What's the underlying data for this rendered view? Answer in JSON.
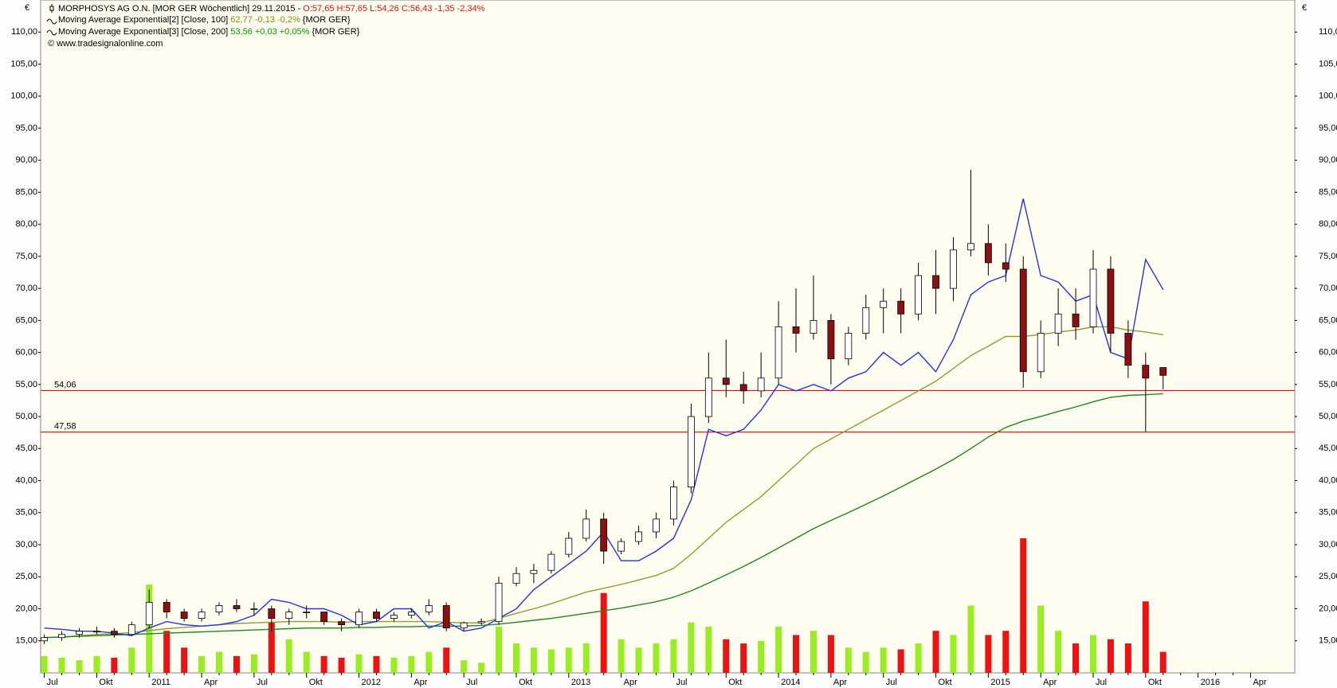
{
  "chart_data": {
    "type": "candlestick",
    "currency": "€",
    "title": "MORPHOSYS AG O.N. [MOR GER  Wöchentlich] 29.11.2015 -",
    "quote": "O:57,65 H:57,65 L:54,26 C:56,43 -1,35 -2,34%",
    "source": "© www.tradesignalonline.com",
    "categories": [
      "Jul",
      null,
      null,
      "Okt",
      null,
      null,
      "2011",
      null,
      null,
      "Apr",
      null,
      null,
      "Jul",
      null,
      null,
      "Okt",
      null,
      null,
      "2012",
      null,
      null,
      "Apr",
      null,
      null,
      "Jul",
      null,
      null,
      "Okt",
      null,
      null,
      "2013",
      null,
      null,
      "Apr",
      null,
      null,
      "Jul",
      null,
      null,
      "Okt",
      null,
      null,
      "2014",
      null,
      null,
      "Apr",
      null,
      null,
      "Jul",
      null,
      null,
      "Okt",
      null,
      null,
      "2015",
      null,
      null,
      "Apr",
      null,
      null,
      "Jul",
      null,
      null,
      "Okt",
      null,
      null,
      "2016",
      null,
      null,
      "Apr"
    ],
    "open": [
      15,
      15.5,
      16,
      16.5,
      16.5,
      16,
      17.5,
      21,
      19.5,
      18.5,
      19.5,
      20.5,
      20,
      20,
      18.5,
      19.5,
      19.5,
      18,
      17.5,
      19.5,
      18.5,
      19,
      19.5,
      20.5,
      17,
      17.8,
      18,
      24,
      25.5,
      26,
      28.5,
      31,
      34,
      29,
      30.5,
      32,
      34,
      39,
      50,
      56,
      55,
      54,
      56,
      64,
      63,
      65,
      59,
      63,
      67,
      68,
      66,
      72,
      70,
      76,
      77,
      74,
      73,
      57,
      63,
      66,
      64,
      73,
      63,
      58,
      57.65,
      null,
      null,
      null,
      null,
      null
    ],
    "high": [
      16,
      16.5,
      17,
      17.2,
      17,
      18,
      23,
      21.5,
      20,
      20,
      21,
      21.5,
      21,
      20.5,
      20,
      20.5,
      19.5,
      18.5,
      20,
      20,
      19.5,
      20,
      21.5,
      21,
      18,
      18.5,
      25,
      26.5,
      27,
      29,
      32,
      35.5,
      35,
      31,
      33,
      35,
      40,
      52,
      60,
      62,
      57,
      60,
      68,
      70,
      72,
      66,
      64,
      69,
      70,
      70,
      74,
      76,
      78,
      88.5,
      80,
      77,
      75,
      65,
      70,
      70,
      76,
      75,
      65,
      60,
      57.65,
      null,
      null,
      null,
      null,
      null
    ],
    "low": [
      14.5,
      15,
      15.5,
      16,
      15.5,
      15.8,
      17,
      18.5,
      18,
      18,
      19,
      19.5,
      19,
      16.5,
      17.5,
      18.5,
      17.5,
      16.5,
      17,
      18,
      18,
      18.5,
      19,
      16.5,
      16.5,
      17.5,
      17.5,
      23.5,
      24,
      25.5,
      28,
      30.5,
      27,
      28.5,
      30,
      31,
      33,
      38,
      49,
      53,
      52,
      53,
      55,
      60,
      62,
      55,
      58,
      62,
      63,
      63,
      65,
      66,
      68,
      75,
      72,
      71,
      54.5,
      56,
      61,
      62,
      63,
      60,
      56,
      47.58,
      54.26,
      null,
      null,
      null,
      null,
      null
    ],
    "close": [
      15.5,
      16,
      16.5,
      16.5,
      16,
      17.5,
      21,
      19.5,
      18.5,
      19.5,
      20.5,
      20,
      20,
      18.5,
      19.5,
      19.5,
      18,
      17.5,
      19.5,
      18.5,
      19,
      19.5,
      20.5,
      17,
      17.8,
      18,
      24,
      25.5,
      26,
      28.5,
      31,
      34,
      29,
      30.5,
      32,
      34,
      39,
      50,
      56,
      55,
      54,
      56,
      64,
      63,
      65,
      59,
      63,
      67,
      68,
      66,
      72,
      70,
      76,
      77,
      74,
      73,
      57,
      63,
      66,
      64,
      73,
      63,
      58,
      56,
      56.43,
      null,
      null,
      null,
      null,
      null
    ],
    "volume": [
      20,
      18,
      15,
      20,
      18,
      30,
      105,
      50,
      30,
      20,
      25,
      20,
      22,
      60,
      40,
      25,
      20,
      18,
      22,
      20,
      18,
      20,
      25,
      30,
      15,
      12,
      55,
      35,
      30,
      28,
      30,
      35,
      95,
      40,
      30,
      35,
      40,
      60,
      55,
      40,
      35,
      38,
      55,
      45,
      50,
      45,
      30,
      25,
      30,
      28,
      35,
      50,
      45,
      80,
      45,
      50,
      160,
      80,
      50,
      35,
      45,
      40,
      35,
      85,
      25,
      null,
      null,
      null,
      null,
      null
    ],
    "vlim": [
      0,
      800
    ],
    "up_color": "#ffffff",
    "down_color": "#8b1010",
    "volume_up_color": "#99ee22",
    "volume_down_color": "#ee1111",
    "series": [
      {
        "name": "Moving Average Exponential[2] [Close, 100]",
        "legend_value": "62,77 -0,13 -0,2%",
        "legend_suffix": "{MOR GER}",
        "color": "#9a9a30",
        "values": [
          15.5,
          15.6,
          15.8,
          16,
          16.1,
          16.3,
          16.6,
          16.9,
          17.1,
          17.3,
          17.5,
          17.7,
          17.8,
          17.9,
          18,
          18,
          18,
          17.9,
          18,
          18,
          18,
          18,
          18,
          17.9,
          17.8,
          17.8,
          18.5,
          19.3,
          20,
          20.8,
          21.7,
          22.6,
          23.2,
          23.8,
          24.5,
          25.2,
          26.3,
          28.5,
          31,
          33.5,
          35.5,
          37.5,
          40,
          42.5,
          45,
          46.5,
          48,
          49.5,
          51,
          52.5,
          54,
          55.5,
          57.5,
          59.5,
          61,
          62.5,
          62.5,
          62.8,
          63.2,
          63.5,
          64,
          64,
          63.5,
          63.2,
          62.77,
          null,
          null,
          null,
          null,
          null
        ]
      },
      {
        "name": "Moving Average Exponential[3] [Close, 200]",
        "legend_value": "53,56 +0,03 +0,05%",
        "legend_suffix": "{MOR GER}",
        "color": "#1a8a1a",
        "values": [
          15.5,
          15.6,
          15.7,
          15.8,
          15.9,
          16,
          16.1,
          16.2,
          16.3,
          16.4,
          16.5,
          16.6,
          16.7,
          16.8,
          16.9,
          17,
          17,
          17,
          17.1,
          17.1,
          17.2,
          17.2,
          17.3,
          17.3,
          17.3,
          17.4,
          17.6,
          17.9,
          18.2,
          18.5,
          18.9,
          19.3,
          19.7,
          20.1,
          20.6,
          21.1,
          21.8,
          22.8,
          24,
          25.3,
          26.6,
          28,
          29.5,
          31,
          32.5,
          33.8,
          35,
          36.3,
          37.6,
          39,
          40.4,
          41.8,
          43.3,
          45,
          46.8,
          48.3,
          49.3,
          50,
          50.8,
          51.5,
          52.3,
          53,
          53.3,
          53.4,
          53.56,
          null,
          null,
          null,
          null,
          null
        ]
      },
      {
        "color": "#2233ee",
        "values": [
          17,
          16.8,
          16.5,
          16.5,
          16.2,
          15.8,
          17,
          18,
          17.5,
          17.3,
          17.5,
          18,
          19,
          21.5,
          21,
          20,
          20,
          19,
          17.5,
          18,
          20,
          20,
          17,
          18,
          16.5,
          17,
          18.5,
          20,
          23,
          25,
          27,
          29,
          32,
          27.5,
          27.5,
          29,
          31,
          37,
          48,
          47,
          48,
          51,
          55,
          54,
          55,
          54,
          56,
          57,
          60,
          58,
          60,
          57,
          62,
          69,
          71,
          72,
          84,
          72,
          71,
          68,
          69,
          60,
          59,
          74.5,
          69.8,
          null,
          null,
          null,
          null,
          null
        ]
      }
    ],
    "hlines": [
      {
        "value": 54.06,
        "label": "54,06"
      },
      {
        "value": 47.58,
        "label": "47,58"
      }
    ],
    "hline_color": "#e01010",
    "ylim": [
      10,
      115
    ],
    "yticks": [
      {
        "value": 15,
        "label": "15,00"
      },
      {
        "value": 20,
        "label": "20,00"
      },
      {
        "value": 25,
        "label": "25,00"
      },
      {
        "value": 30,
        "label": "30,00"
      },
      {
        "value": 35,
        "label": "35,00"
      },
      {
        "value": 40,
        "label": "40,00"
      },
      {
        "value": 45,
        "label": "45,00"
      },
      {
        "value": 50,
        "label": "50,00"
      },
      {
        "value": 55,
        "label": "55,00"
      },
      {
        "value": 60,
        "label": "60,00"
      },
      {
        "value": 65,
        "label": "65,00"
      },
      {
        "value": 70,
        "label": "70,00"
      },
      {
        "value": 75,
        "label": "75,00"
      },
      {
        "value": 80,
        "label": "80,00"
      },
      {
        "value": 85,
        "label": "85,00"
      },
      {
        "value": 90,
        "label": "90,00"
      },
      {
        "value": 95,
        "label": "95,00"
      },
      {
        "value": 100,
        "label": "100,00"
      },
      {
        "value": 105,
        "label": "105,00"
      },
      {
        "value": 110,
        "label": "110,00"
      }
    ]
  }
}
